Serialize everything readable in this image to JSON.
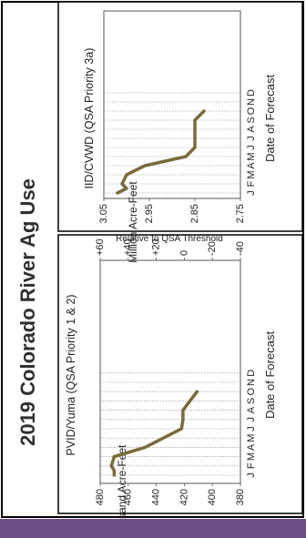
{
  "page": {
    "title": "2019 Colorado River Ag Use",
    "accent_band_color": "#6f4f8a",
    "series_color": "#7b6a3a"
  },
  "chart_data": [
    {
      "type": "line",
      "title": "PVID/Yuma (QSA Priority 1 & 2)",
      "xlabel": "Date of Forecast",
      "ylabel": "Thousand Acre-Feet",
      "x_ticks": [
        "J",
        "F",
        "M",
        "A",
        "M",
        "J",
        "J",
        "A",
        "S",
        "O",
        "N",
        "D"
      ],
      "y_ticks": [
        480,
        460,
        440,
        420,
        400,
        380
      ],
      "ylim": [
        380,
        480
      ],
      "secondary_axis": {
        "label": "Relative to QSA Threshold",
        "ticks": [
          "+60",
          "+40",
          "+20",
          "0",
          "-20",
          "-40"
        ],
        "values": [
          60,
          40,
          20,
          0,
          -20,
          -40
        ]
      },
      "grid": true,
      "series": [
        {
          "x": [
            0,
            0.5,
            1,
            2,
            3,
            4,
            5,
            6,
            7,
            8,
            9
          ],
          "values": [
            470,
            470,
            472,
            470,
            448,
            435,
            422,
            421,
            421,
            416,
            411
          ]
        }
      ]
    },
    {
      "type": "line",
      "title": "IID/CVWD (QSA Priority 3a)",
      "xlabel": "Date of Forecast",
      "ylabel": "Million Acre-Feet",
      "x_ticks": [
        "J",
        "F",
        "M",
        "A",
        "M",
        "J",
        "J",
        "A",
        "S",
        "O",
        "N",
        "D"
      ],
      "y_ticks": [
        "3.05",
        "2.95",
        "2.85",
        "2.75"
      ],
      "ylim": [
        2.75,
        3.05
      ],
      "grid": true,
      "series": [
        {
          "x": [
            0,
            0.5,
            1,
            2,
            3,
            4,
            5,
            6,
            7,
            8,
            9
          ],
          "values": [
            3.02,
            3.0,
            3.01,
            3.0,
            2.96,
            2.87,
            2.85,
            2.85,
            2.85,
            2.85,
            2.83
          ]
        }
      ]
    }
  ]
}
